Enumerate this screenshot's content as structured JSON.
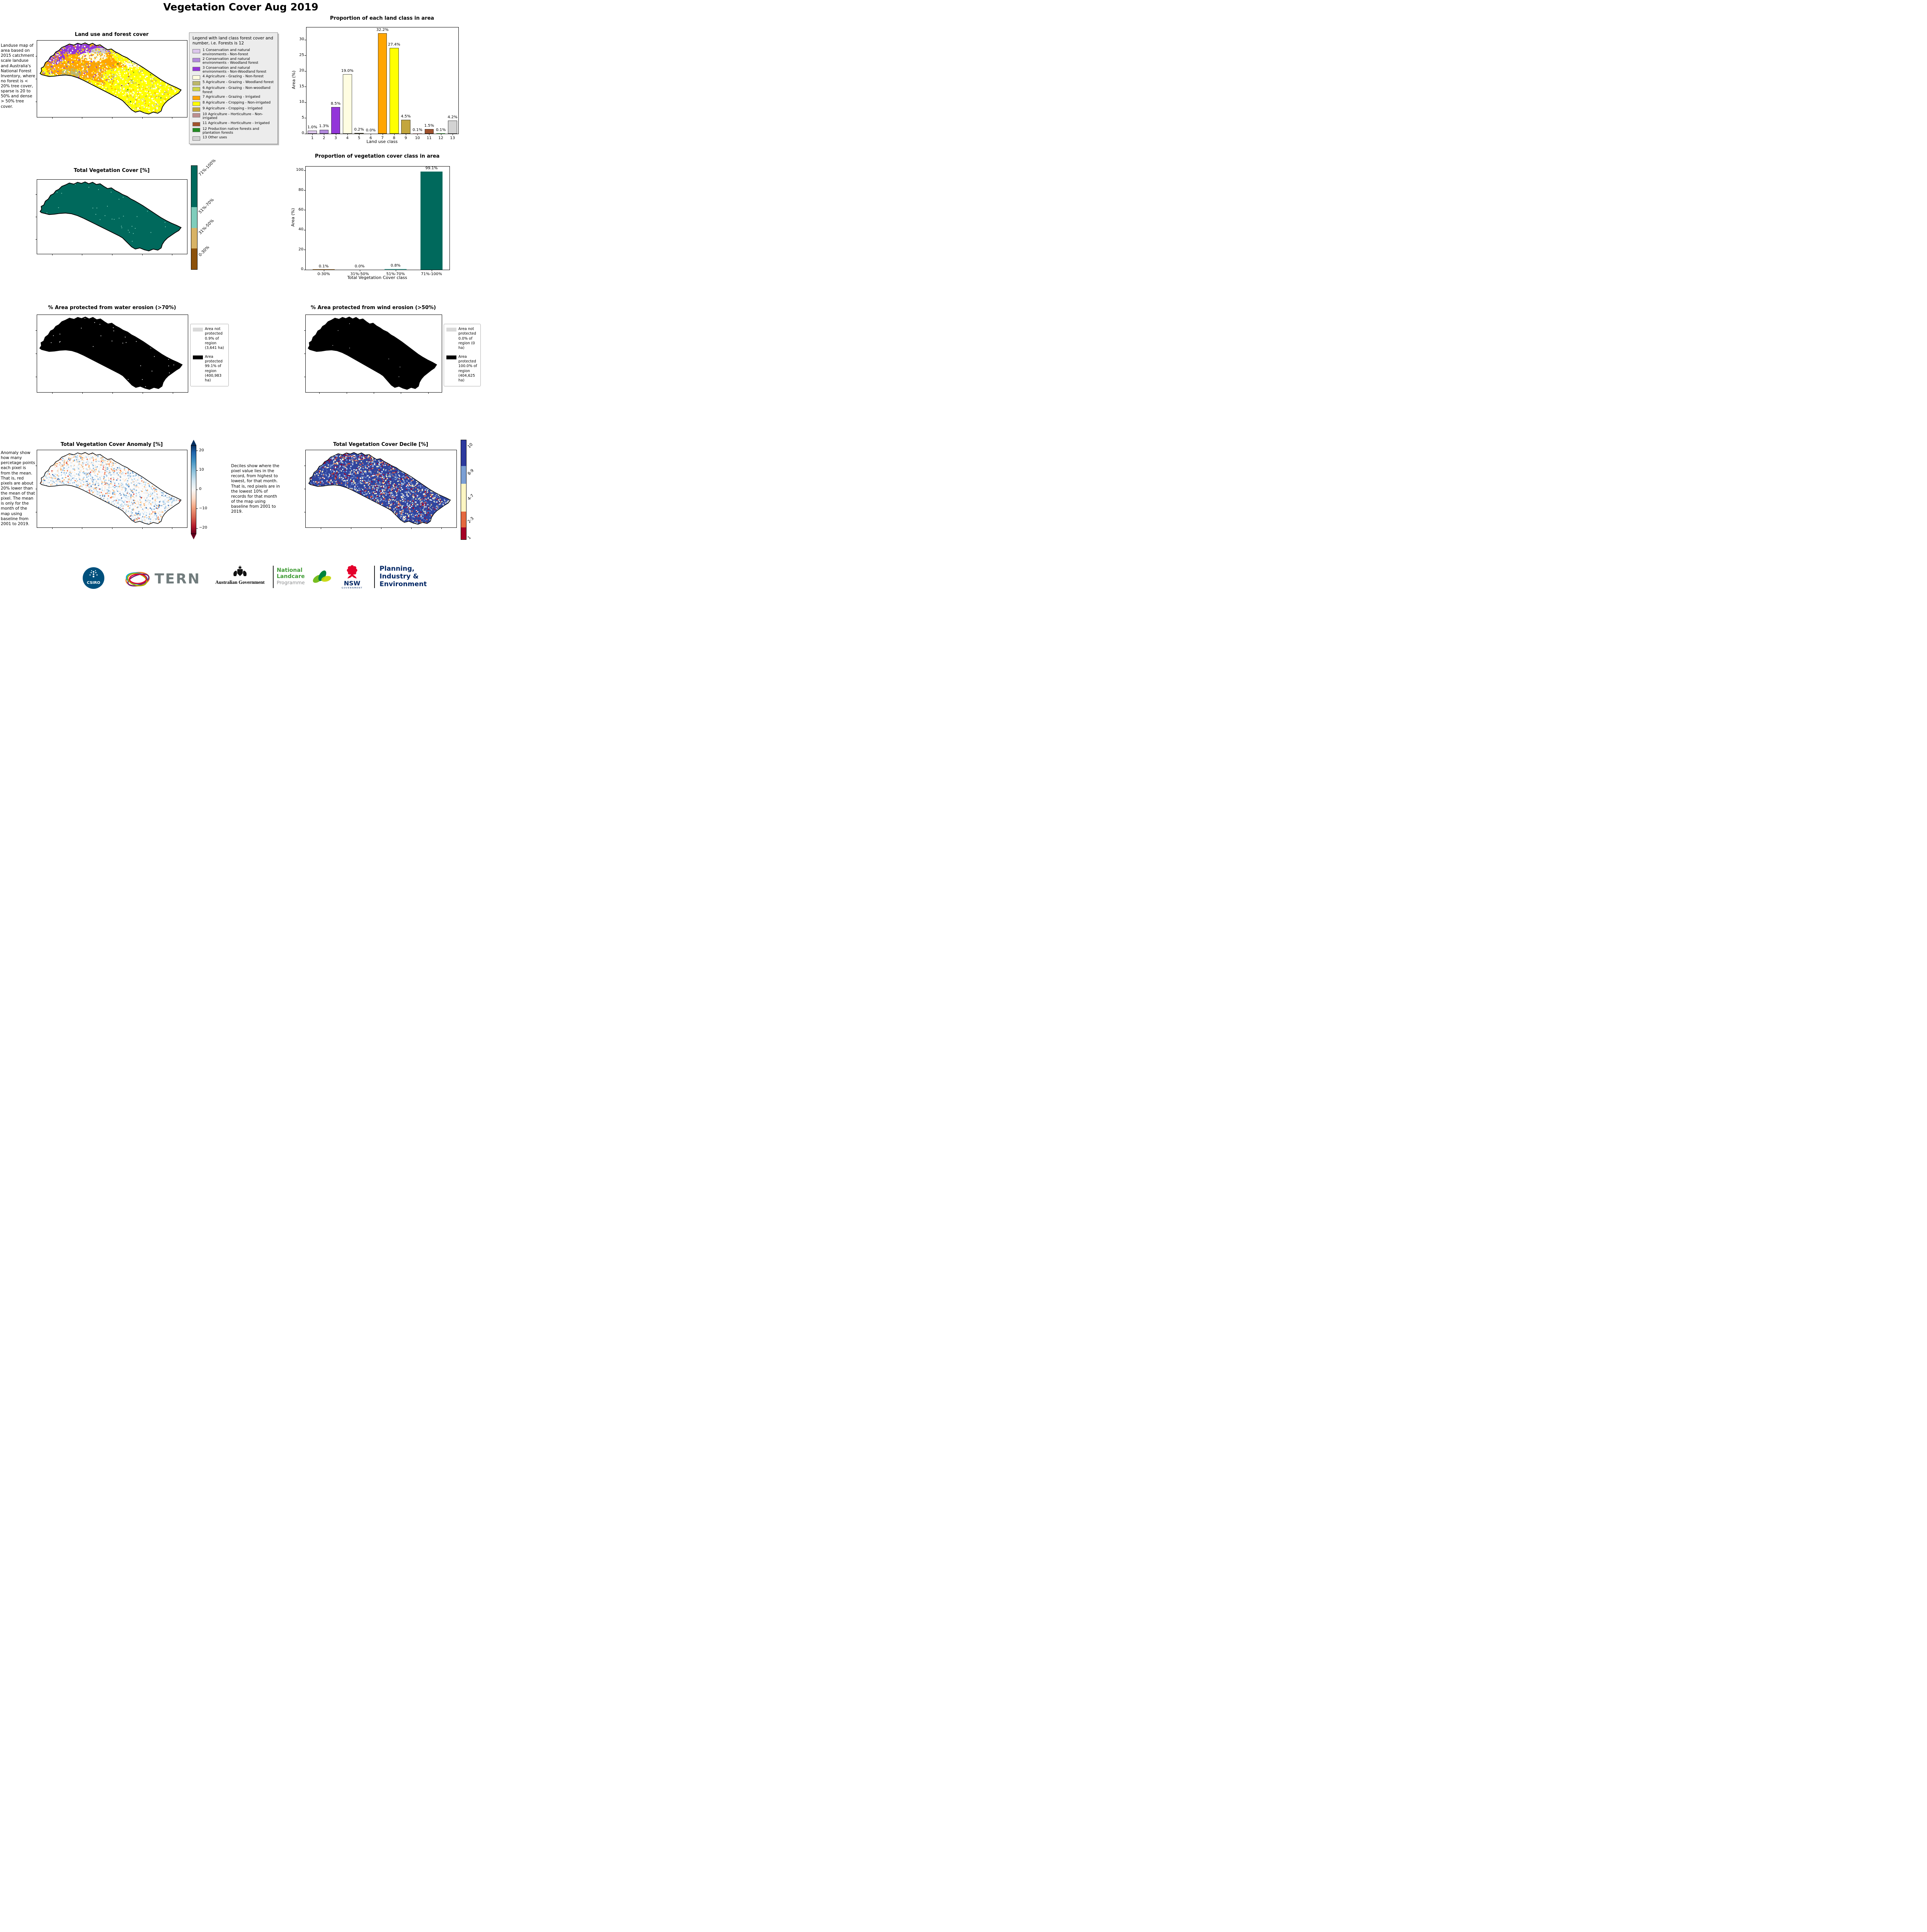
{
  "title": "Vegetation Cover Aug 2019",
  "landuse": {
    "title": "Land use and forest cover",
    "description": "Landuse map of area based on 2015 catchment scale landuse and Australia's National Forest Inventory, where no forest is < 20% tree cover, sparse is 20 to 50% and dense > 50% tree cover.",
    "legend_title": "Legend with land class forest cover and number, i.e. Forests is 12",
    "legend_items": [
      {
        "label": "1 Conservation and natural environments - Non-forest",
        "color": "#dcc7ec"
      },
      {
        "label": "2 Conservation and natural environments - Woodland forest",
        "color": "#b289dd"
      },
      {
        "label": "3 Conservation and natural environments - Non-Woodland forest",
        "color": "#9336d9"
      },
      {
        "label": "4 Agriculture - Grazing - Non-forest",
        "color": "#fffde1"
      },
      {
        "label": "5 Agriculture - Grazing - Woodland forest",
        "color": "#bdb76b"
      },
      {
        "label": "6 Agriculture - Grazing - Non-woodland forest",
        "color": "#cdd54a"
      },
      {
        "label": "7 Agriculture - Grazing - Irrigated",
        "color": "#ffa500"
      },
      {
        "label": "8 Agriculture - Cropping - Non-irrigated",
        "color": "#ffff00"
      },
      {
        "label": "9 Agriculture - Cropping - Irrigated",
        "color": "#c3a63d"
      },
      {
        "label": "10 Agriculture - Horticulture - Non-irrigated",
        "color": "#bc8f8f"
      },
      {
        "label": "11 Agriculture - Horticulture - Irrigated",
        "color": "#a0522d"
      },
      {
        "label": "12 Production native forests and plantation forests",
        "color": "#228b22"
      },
      {
        "label": "13 Other uses",
        "color": "#d3d3d3"
      }
    ]
  },
  "tvc": {
    "title": "Total Vegetation Cover [%]",
    "map_color": "#00695c",
    "speckle_color": "#7fcdbb",
    "colorbar_labels": [
      "71%-100%",
      "51%-70%",
      "31%-50%",
      "0-30%"
    ],
    "colorbar_colors": [
      "#00695c",
      "#7fcdbb",
      "#d8b365",
      "#8c510a"
    ]
  },
  "water": {
    "title": "% Area protected from water erosion (>70%)",
    "legend": [
      {
        "swatch": "#d9d9d9",
        "text": "Area not protected 0.9% of region (3,641 ha)"
      },
      {
        "swatch": "#000000",
        "text": "Area protected 99.1% of region (400,983 ha)"
      }
    ]
  },
  "wind": {
    "title": "% Area protected from wind erosion (>50%)",
    "legend": [
      {
        "swatch": "#d9d9d9",
        "text": "Area not protected 0.0% of region (0 ha)"
      },
      {
        "swatch": "#000000",
        "text": "Area protected 100.0% of region (404,625 ha)"
      }
    ]
  },
  "anomaly": {
    "title": "Total Vegetation Cover Anomaly [%]",
    "description": "Anomaly show how many percetage points each pixel is from the mean. That is, red pixels are about 20% lower than the mean of that pixel. The mean is only for the month of the map using baseline from 2001 to 2019.",
    "colorbar_ticks": [
      "20",
      "10",
      "0",
      "−10",
      "−20"
    ],
    "palette": [
      "#d73027",
      "#f46d43",
      "#fdae61",
      "#fee6cf",
      "#ffffff",
      "#e3eef8",
      "#abcfe8",
      "#74a9d8",
      "#3a70b4"
    ]
  },
  "decile": {
    "title": "Total Vegetation Cover Decile [%]",
    "description": "Deciles show where the pixel value lies in the record, from highest to lowest, for that month. That is, red pixels are in the lowest 10% of records for that month of the map using baseline from 2001 to 2019.",
    "colorbar_labels": [
      "10",
      "8-9",
      "4-7",
      "2-3",
      "1"
    ],
    "colorbar_colors": [
      "#2d3a9e",
      "#7b9fd4",
      "#fdf6c3",
      "#e4683f",
      "#a50026"
    ],
    "palette": [
      "#a50026",
      "#e8683f",
      "#fdf6c3",
      "#ffffff",
      "#8aa8dc",
      "#5470c0",
      "#30459e"
    ]
  },
  "chart_data": [
    {
      "type": "bar",
      "title": "Proportion of each land class in area",
      "categories": [
        "1",
        "2",
        "3",
        "4",
        "5",
        "6",
        "7",
        "8",
        "9",
        "10",
        "11",
        "12",
        "13"
      ],
      "values": [
        1.0,
        1.3,
        8.5,
        19.0,
        0.2,
        0.0,
        32.2,
        27.4,
        4.5,
        0.1,
        1.5,
        0.1,
        4.2
      ],
      "bar_labels": [
        "1.0%",
        "1.3%",
        "8.5%",
        "19.0%",
        "0.2%",
        "0.0%",
        "32.2%",
        "27.4%",
        "4.5%",
        "0.1%",
        "1.5%",
        "0.1%",
        "4.2%"
      ],
      "bar_colors": [
        "#dcc7ec",
        "#b289dd",
        "#9336d9",
        "#fffde1",
        "#bdb76b",
        "#cdd54a",
        "#ffa500",
        "#ffff00",
        "#c3a63d",
        "#bc8f8f",
        "#a0522d",
        "#228b22",
        "#d3d3d3"
      ],
      "xlabel": "Land use class",
      "ylabel": "Area (%)",
      "ylim": [
        0,
        34
      ],
      "yticks": [
        0,
        5,
        10,
        15,
        20,
        25,
        30
      ],
      "grid": false,
      "legend_position": "none"
    },
    {
      "type": "bar",
      "title": "Proportion of vegetation cover class in area",
      "categories": [
        "0-30%",
        "31%-50%",
        "51%-70%",
        "71%-100%"
      ],
      "values": [
        0.1,
        0.0,
        0.8,
        99.1
      ],
      "bar_labels": [
        "0.1%",
        "0.0%",
        "0.8%",
        "99.1%"
      ],
      "bar_colors": [
        "#8c510a",
        "#d8b365",
        "#5ab4ac",
        "#00695c"
      ],
      "xlabel": "Total Vegetation Cover class",
      "ylabel": "Area (%)",
      "ylim": [
        0,
        104
      ],
      "yticks": [
        0,
        20,
        40,
        60,
        80,
        100
      ],
      "grid": false,
      "legend_position": "none"
    }
  ],
  "logos": {
    "csiro_label": "CSIRO",
    "tern_label": "TERN",
    "aus_gov_label": "Australian Government",
    "landcare_lines": [
      "National",
      "Landcare",
      "Programme"
    ],
    "nsw_label": "NSW",
    "nsw_sub_label": "GOVERNMENT",
    "planning_lines": [
      "Planning,",
      "Industry &",
      "Environment"
    ]
  },
  "brand_colors": {
    "csiro_navy": "#00507d",
    "nsw_red": "#e4002b",
    "nsw_navy": "#002664",
    "landcare_green": "#3f9c35",
    "landcare_gray": "#8b8d8e",
    "tern_gray": "#717c7d"
  }
}
